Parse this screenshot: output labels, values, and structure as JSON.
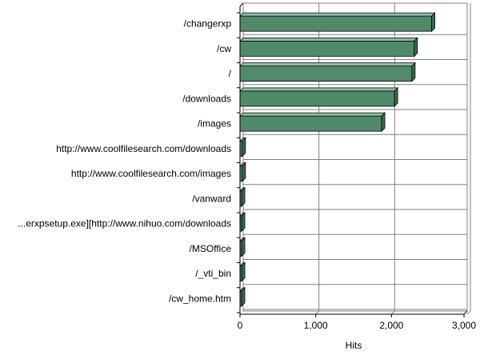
{
  "chart_data": {
    "type": "bar",
    "orientation": "horizontal",
    "title": "",
    "xlabel": "Hits",
    "ylabel": "",
    "categories": [
      "/changerxp",
      "/cw",
      "/",
      "/downloads",
      "/images",
      "http://www.coolfilesearch.com/downloads",
      "http://www.coolfilesearch.com/images",
      "/vanward",
      "...erxpsetup.exe][http://www.nihuo.com/downloads",
      "/MSOffice",
      "/_vti_bin",
      "/cw_home.htm"
    ],
    "values": [
      2530,
      2300,
      2270,
      2040,
      1870,
      30,
      30,
      20,
      20,
      15,
      15,
      15
    ],
    "xlim": [
      0,
      3000
    ],
    "xticks": [
      0,
      1000,
      2000,
      3000
    ],
    "xtick_labels": [
      "0",
      "1,000",
      "2,000",
      "3,000"
    ],
    "grid": true,
    "legend": "none",
    "bar_color": "#518a6b",
    "bar_top_color": "#8fbda3",
    "bar_side_color": "#3a6a50",
    "grid_color": "#808080"
  }
}
